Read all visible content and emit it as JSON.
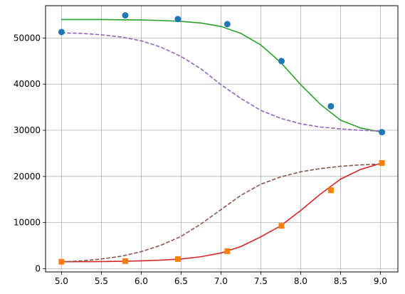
{
  "chart_data": {
    "type": "scatter",
    "title": "",
    "xlabel": "",
    "ylabel": "",
    "xlim": [
      4.8,
      9.22
    ],
    "ylim": [
      -700,
      57000
    ],
    "grid": true,
    "x_ticks": [
      "5.0",
      "5.5",
      "6.0",
      "6.5",
      "7.0",
      "7.5",
      "8.0",
      "8.5",
      "9.0"
    ],
    "y_ticks": [
      "0",
      "10000",
      "20000",
      "30000",
      "40000",
      "50000"
    ],
    "series": [
      {
        "kind": "points",
        "marker": "circle",
        "color": "#1f77b4",
        "x": [
          5.0,
          5.8,
          6.46,
          7.08,
          7.76,
          8.38,
          9.02
        ],
        "y": [
          51300,
          54900,
          54100,
          53000,
          45000,
          35200,
          29600
        ]
      },
      {
        "kind": "points",
        "marker": "square",
        "color": "#ff7f0e",
        "x": [
          5.0,
          5.8,
          6.46,
          7.08,
          7.76,
          8.38,
          9.02
        ],
        "y": [
          1500,
          1650,
          2100,
          3800,
          9300,
          17000,
          22900
        ]
      },
      {
        "kind": "line",
        "dash": "solid",
        "color": "#2ca02c",
        "x": [
          5.0,
          5.25,
          5.5,
          5.75,
          6.0,
          6.25,
          6.5,
          6.75,
          7.0,
          7.25,
          7.5,
          7.75,
          8.0,
          8.25,
          8.5,
          8.75,
          9.02
        ],
        "y": [
          54000,
          54000,
          54000,
          53950,
          53900,
          53800,
          53600,
          53250,
          52500,
          51000,
          48500,
          44700,
          39900,
          35600,
          32200,
          30500,
          29600
        ]
      },
      {
        "kind": "line",
        "dash": "solid",
        "color": "#d62728",
        "x": [
          5.0,
          5.25,
          5.5,
          5.75,
          6.0,
          6.25,
          6.5,
          6.75,
          7.0,
          7.25,
          7.5,
          7.75,
          8.0,
          8.25,
          8.5,
          8.75,
          9.02
        ],
        "y": [
          1500,
          1520,
          1550,
          1600,
          1700,
          1850,
          2100,
          2600,
          3400,
          4800,
          6900,
          9300,
          12600,
          16200,
          19400,
          21500,
          22900
        ]
      },
      {
        "kind": "line",
        "dash": "dashed",
        "color": "#9467bd",
        "x": [
          5.0,
          5.25,
          5.5,
          5.75,
          6.0,
          6.25,
          6.5,
          6.75,
          7.0,
          7.25,
          7.5,
          7.75,
          8.0,
          8.25,
          8.5,
          8.75,
          9.02
        ],
        "y": [
          51100,
          51000,
          50700,
          50200,
          49400,
          48000,
          46000,
          43300,
          39900,
          36900,
          34300,
          32600,
          31400,
          30700,
          30300,
          30000,
          29800
        ]
      },
      {
        "kind": "line",
        "dash": "dashed",
        "color": "#8c564b",
        "x": [
          5.0,
          5.25,
          5.5,
          5.75,
          6.0,
          6.25,
          6.5,
          6.75,
          7.0,
          7.25,
          7.5,
          7.75,
          8.0,
          8.25,
          8.5,
          8.75,
          9.02
        ],
        "y": [
          1500,
          1700,
          2100,
          2700,
          3700,
          5100,
          7000,
          9700,
          12800,
          15900,
          18300,
          19900,
          21000,
          21700,
          22200,
          22500,
          22700
        ]
      }
    ]
  }
}
